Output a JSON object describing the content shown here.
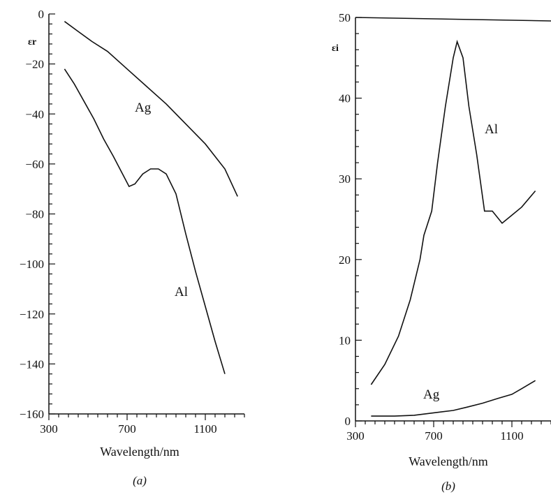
{
  "chart_data": [
    {
      "type": "line",
      "panel_label": "(a)",
      "xlabel": "Wavelength/nm",
      "ylabel": "εr",
      "xlim": [
        300,
        1300
      ],
      "ylim": [
        -160,
        0
      ],
      "x_ticks": [
        300,
        700,
        1100
      ],
      "y_ticks": [
        0,
        -20,
        -40,
        -60,
        -80,
        -100,
        -120,
        -140,
        -160
      ],
      "x_tick_labels": [
        "300",
        "700",
        "1100"
      ],
      "y_tick_labels": [
        "0",
        "−20",
        "−40",
        "−60",
        "−80",
        "−100",
        "−120",
        "−140",
        "−160"
      ],
      "series": [
        {
          "name": "Ag",
          "x": [
            380,
            450,
            520,
            600,
            700,
            800,
            900,
            1000,
            1100,
            1200,
            1265
          ],
          "y": [
            -3,
            -7,
            -11,
            -15,
            -22,
            -29,
            -36,
            -44,
            -52,
            -62,
            -73
          ]
        },
        {
          "name": "Al",
          "x": [
            380,
            430,
            480,
            530,
            580,
            630,
            670,
            710,
            740,
            780,
            820,
            860,
            900,
            950,
            1000,
            1050,
            1100,
            1150,
            1200
          ],
          "y": [
            -22,
            -28,
            -35,
            -42,
            -50,
            -57,
            -63,
            -69,
            -68,
            -64,
            -62,
            -62,
            -64,
            -72,
            -88,
            -103,
            -117,
            -131,
            -144
          ]
        }
      ]
    },
    {
      "type": "line",
      "panel_label": "(b)",
      "xlabel": "Wavelength/nm",
      "ylabel": "εi",
      "xlim": [
        300,
        1300
      ],
      "ylim": [
        0,
        50
      ],
      "x_ticks": [
        300,
        700,
        1100
      ],
      "y_ticks": [
        0,
        10,
        20,
        30,
        40,
        50
      ],
      "x_tick_labels": [
        "300",
        "700",
        "1100"
      ],
      "y_tick_labels": [
        "0",
        "10",
        "20",
        "30",
        "40",
        "50"
      ],
      "series": [
        {
          "name": "Al",
          "x": [
            380,
            450,
            520,
            580,
            630,
            650,
            690,
            720,
            760,
            800,
            820,
            850,
            880,
            920,
            960,
            1000,
            1050,
            1100,
            1150,
            1220
          ],
          "y": [
            4.5,
            7,
            10.5,
            15,
            20,
            23,
            26,
            32,
            39,
            45,
            47,
            45,
            39,
            33,
            26,
            26,
            24.5,
            25.5,
            26.5,
            28.5
          ]
        },
        {
          "name": "Ag",
          "x": [
            380,
            500,
            600,
            700,
            800,
            870,
            950,
            1030,
            1100,
            1150,
            1220
          ],
          "y": [
            0.6,
            0.6,
            0.7,
            1.0,
            1.3,
            1.7,
            2.2,
            2.8,
            3.3,
            4.0,
            5.0
          ]
        }
      ]
    }
  ]
}
